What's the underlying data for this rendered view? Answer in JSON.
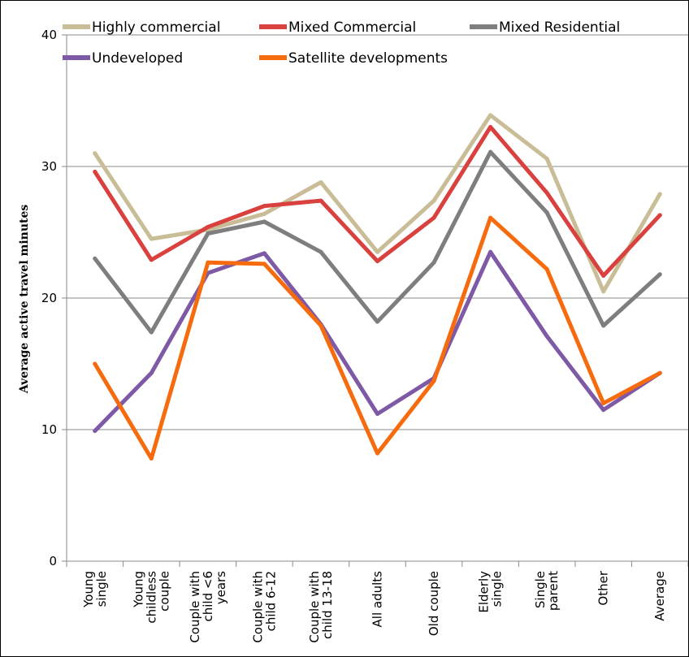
{
  "chart_data": {
    "type": "line",
    "title": "",
    "xlabel": "",
    "ylabel": "Average active travel minutes",
    "ylim": [
      0,
      40
    ],
    "yticks": [
      0,
      10,
      20,
      30,
      40
    ],
    "grid": "horizontal",
    "legend_position": "top",
    "categories": [
      [
        "Young",
        "single"
      ],
      [
        "Young",
        "childless",
        "couple"
      ],
      [
        "Couple with",
        "child <6",
        "years"
      ],
      [
        "Couple with",
        "child 6-12"
      ],
      [
        "Couple with",
        "child 13-18"
      ],
      [
        "All adults"
      ],
      [
        "Old couple"
      ],
      [
        "Elderly",
        "single"
      ],
      [
        "Single",
        "parent"
      ],
      [
        "Other"
      ],
      [
        "Average"
      ]
    ],
    "series": [
      {
        "name": "Highly commercial",
        "color": "#C9BD97",
        "values": [
          31.0,
          24.5,
          25.2,
          26.4,
          28.8,
          23.5,
          27.4,
          33.9,
          30.6,
          20.5,
          27.9
        ]
      },
      {
        "name": "Mixed Commercial",
        "color": "#D9413E",
        "values": [
          29.6,
          22.9,
          25.4,
          27.0,
          27.4,
          22.8,
          26.1,
          33.0,
          28.0,
          21.7,
          26.3
        ]
      },
      {
        "name": "Mixed Residential",
        "color": "#7E7E7E",
        "values": [
          23.0,
          17.4,
          24.9,
          25.8,
          23.5,
          18.2,
          22.7,
          31.1,
          26.5,
          17.9,
          21.8
        ]
      },
      {
        "name": "Undeveloped",
        "color": "#7E59A5",
        "values": [
          9.9,
          14.3,
          21.9,
          23.4,
          18.0,
          11.2,
          13.9,
          23.5,
          17.1,
          11.5,
          14.3
        ]
      },
      {
        "name": "Satellite developments",
        "color": "#F76B0F",
        "values": [
          15.0,
          7.8,
          22.7,
          22.6,
          17.9,
          8.2,
          13.7,
          26.1,
          22.2,
          12.0,
          14.3
        ]
      }
    ]
  }
}
